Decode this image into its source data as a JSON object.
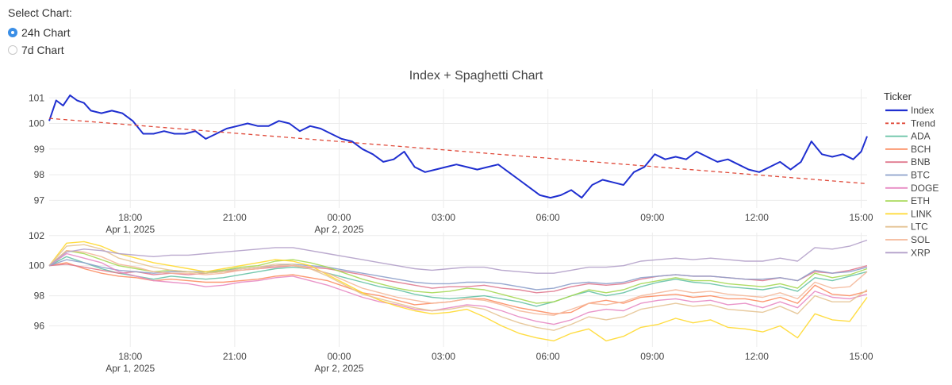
{
  "controls": {
    "label": "Select Chart:",
    "options": [
      "24h Chart",
      "7d Chart"
    ],
    "selected": "24h Chart"
  },
  "chart_data": {
    "type": "line",
    "title": "Index + Spaghetti Chart",
    "x_start": "2025-04-01 15:40",
    "x_end": "2025-04-02 15:10",
    "x_ticks": [
      {
        "hours": 2.33,
        "label": "18:00",
        "sublabel": "Apr 1, 2025"
      },
      {
        "hours": 5.33,
        "label": "21:00",
        "sublabel": ""
      },
      {
        "hours": 8.33,
        "label": "00:00",
        "sublabel": "Apr 2, 2025"
      },
      {
        "hours": 11.33,
        "label": "03:00",
        "sublabel": ""
      },
      {
        "hours": 14.33,
        "label": "06:00",
        "sublabel": ""
      },
      {
        "hours": 17.33,
        "label": "09:00",
        "sublabel": ""
      },
      {
        "hours": 20.33,
        "label": "12:00",
        "sublabel": ""
      },
      {
        "hours": 23.33,
        "label": "15:00",
        "sublabel": ""
      }
    ],
    "legend_title": "Ticker",
    "colors": {
      "Index": "#1f2fd0",
      "Trend": "#e04a3a",
      "ADA": "#66c2a5",
      "BCH": "#fc8d62",
      "BNB": "#e07a8f",
      "BTC": "#8da0cb",
      "DOGE": "#e78ac3",
      "ETH": "#a6d854",
      "LINK": "#ffd92f",
      "LTC": "#e5c494",
      "SOL": "#f4b89a",
      "XRP": "#b3a0c9"
    },
    "top_panel": {
      "ylim": [
        96.7,
        101.35
      ],
      "yticks": [
        97,
        98,
        99,
        100,
        101
      ],
      "series": [
        {
          "name": "Index",
          "style": "solid",
          "x_hours": [
            0,
            0.2,
            0.4,
            0.6,
            0.8,
            1.0,
            1.2,
            1.5,
            1.8,
            2.1,
            2.4,
            2.7,
            3.0,
            3.3,
            3.6,
            3.9,
            4.2,
            4.5,
            4.8,
            5.1,
            5.4,
            5.7,
            6.0,
            6.3,
            6.6,
            6.9,
            7.2,
            7.5,
            7.8,
            8.1,
            8.4,
            8.7,
            9.0,
            9.3,
            9.6,
            9.9,
            10.2,
            10.5,
            10.8,
            11.1,
            11.4,
            11.7,
            12.0,
            12.3,
            12.6,
            12.9,
            13.2,
            13.5,
            13.8,
            14.1,
            14.4,
            14.7,
            15.0,
            15.3,
            15.6,
            15.9,
            16.2,
            16.5,
            16.8,
            17.1,
            17.4,
            17.7,
            18.0,
            18.3,
            18.6,
            18.9,
            19.2,
            19.5,
            19.8,
            20.1,
            20.4,
            20.7,
            21.0,
            21.3,
            21.6,
            21.9,
            22.2,
            22.5,
            22.8,
            23.1,
            23.33,
            23.5
          ],
          "values": [
            100.1,
            100.9,
            100.7,
            101.1,
            100.9,
            100.8,
            100.5,
            100.4,
            100.5,
            100.4,
            100.1,
            99.6,
            99.6,
            99.7,
            99.6,
            99.6,
            99.7,
            99.4,
            99.6,
            99.8,
            99.9,
            100.0,
            99.9,
            99.9,
            100.1,
            100.0,
            99.7,
            99.9,
            99.8,
            99.6,
            99.4,
            99.3,
            99.0,
            98.8,
            98.5,
            98.6,
            98.9,
            98.3,
            98.1,
            98.2,
            98.3,
            98.4,
            98.3,
            98.2,
            98.3,
            98.4,
            98.1,
            97.8,
            97.5,
            97.2,
            97.1,
            97.2,
            97.4,
            97.1,
            97.6,
            97.8,
            97.7,
            97.6,
            98.1,
            98.3,
            98.8,
            98.6,
            98.7,
            98.6,
            98.9,
            98.7,
            98.5,
            98.6,
            98.4,
            98.2,
            98.1,
            98.3,
            98.5,
            98.2,
            98.5,
            99.3,
            98.8,
            98.7,
            98.8,
            98.6,
            98.9,
            99.5
          ]
        },
        {
          "name": "Trend",
          "style": "dash",
          "x_hours": [
            0,
            23.5
          ],
          "values": [
            100.2,
            97.65
          ]
        }
      ]
    },
    "bottom_panel": {
      "ylim": [
        94.6,
        102.2
      ],
      "yticks": [
        96,
        98,
        100,
        102
      ],
      "x_hours": [
        0,
        0.5,
        1,
        1.5,
        2,
        2.5,
        3,
        3.5,
        4,
        4.5,
        5,
        5.5,
        6,
        6.5,
        7,
        7.5,
        8,
        8.5,
        9,
        9.5,
        10,
        10.5,
        11,
        11.5,
        12,
        12.5,
        13,
        13.5,
        14,
        14.5,
        15,
        15.5,
        16,
        16.5,
        17,
        17.5,
        18,
        18.5,
        19,
        19.5,
        20,
        20.5,
        21,
        21.5,
        22,
        22.5,
        23,
        23.5
      ],
      "series": [
        {
          "name": "ADA",
          "values": [
            100.0,
            100.6,
            100.2,
            99.8,
            99.5,
            99.3,
            99.1,
            99.3,
            99.2,
            99.1,
            99.2,
            99.4,
            99.6,
            99.8,
            99.9,
            99.8,
            99.5,
            99.2,
            98.9,
            98.6,
            98.4,
            98.1,
            97.9,
            97.8,
            97.9,
            98.0,
            97.8,
            97.6,
            97.3,
            97.6,
            98.0,
            98.3,
            98.0,
            98.2,
            98.6,
            98.9,
            99.1,
            98.9,
            98.8,
            98.6,
            98.5,
            98.4,
            98.6,
            98.3,
            99.2,
            99.0,
            99.3,
            99.6
          ]
        },
        {
          "name": "BCH",
          "values": [
            100.0,
            100.2,
            99.8,
            99.5,
            99.3,
            99.2,
            99.0,
            99.1,
            99.0,
            98.9,
            98.9,
            99.0,
            99.1,
            99.3,
            99.4,
            99.2,
            99.0,
            98.6,
            98.2,
            98.0,
            97.7,
            97.4,
            97.5,
            97.6,
            97.8,
            97.8,
            97.5,
            97.2,
            97.0,
            96.8,
            96.9,
            97.5,
            97.7,
            97.5,
            97.9,
            98.0,
            98.1,
            97.9,
            98.0,
            97.8,
            97.8,
            97.6,
            97.9,
            97.5,
            98.7,
            98.1,
            98.0,
            98.3
          ]
        },
        {
          "name": "BNB",
          "values": [
            100.0,
            100.1,
            99.9,
            99.7,
            99.5,
            99.6,
            99.4,
            99.5,
            99.4,
            99.5,
            99.6,
            99.7,
            99.8,
            99.9,
            100.0,
            99.9,
            99.8,
            99.6,
            99.4,
            99.1,
            98.9,
            98.7,
            98.5,
            98.6,
            98.6,
            98.7,
            98.5,
            98.4,
            98.2,
            98.3,
            98.6,
            98.8,
            98.7,
            98.8,
            99.1,
            99.3,
            99.4,
            99.3,
            99.3,
            99.2,
            99.1,
            99.0,
            99.2,
            99.0,
            99.6,
            99.5,
            99.7,
            100.0
          ]
        },
        {
          "name": "BTC",
          "values": [
            100.0,
            100.4,
            100.2,
            99.9,
            99.7,
            99.6,
            99.5,
            99.6,
            99.6,
            99.6,
            99.7,
            99.8,
            99.9,
            100.0,
            100.1,
            100.0,
            99.9,
            99.7,
            99.5,
            99.3,
            99.1,
            98.9,
            98.8,
            98.8,
            98.9,
            98.9,
            98.8,
            98.6,
            98.4,
            98.5,
            98.8,
            98.9,
            98.8,
            98.9,
            99.2,
            99.3,
            99.4,
            99.3,
            99.3,
            99.2,
            99.1,
            99.1,
            99.2,
            99.0,
            99.7,
            99.5,
            99.6,
            99.9
          ]
        },
        {
          "name": "DOGE",
          "values": [
            100.0,
            100.8,
            100.5,
            100.2,
            99.6,
            99.3,
            99.0,
            98.9,
            98.8,
            98.6,
            98.7,
            98.9,
            99.0,
            99.2,
            99.3,
            99.0,
            98.7,
            98.3,
            97.9,
            97.6,
            97.4,
            97.1,
            97.0,
            97.2,
            97.4,
            97.3,
            97.0,
            96.6,
            96.3,
            96.1,
            96.4,
            96.9,
            97.1,
            97.0,
            97.5,
            97.7,
            97.8,
            97.6,
            97.7,
            97.4,
            97.5,
            97.2,
            97.6,
            97.2,
            98.3,
            97.9,
            97.8,
            98.1
          ]
        },
        {
          "name": "ETH",
          "values": [
            100.0,
            101.0,
            100.8,
            100.4,
            100.0,
            99.8,
            99.6,
            99.7,
            99.6,
            99.5,
            99.7,
            99.9,
            100.0,
            100.3,
            100.4,
            100.2,
            99.9,
            99.5,
            99.1,
            98.8,
            98.5,
            98.3,
            98.2,
            98.3,
            98.5,
            98.4,
            98.1,
            97.8,
            97.5,
            97.6,
            98.0,
            98.4,
            98.2,
            98.4,
            98.8,
            99.0,
            99.2,
            99.0,
            99.0,
            98.8,
            98.7,
            98.6,
            98.8,
            98.5,
            99.5,
            99.2,
            99.4,
            99.8
          ]
        },
        {
          "name": "LINK",
          "values": [
            100.0,
            101.5,
            101.6,
            101.3,
            100.8,
            100.5,
            100.2,
            100.0,
            99.8,
            99.6,
            99.8,
            100.0,
            100.2,
            100.4,
            100.3,
            100.0,
            99.4,
            98.8,
            98.2,
            97.7,
            97.3,
            97.0,
            96.8,
            96.9,
            97.1,
            96.6,
            96.0,
            95.5,
            95.2,
            95.0,
            95.5,
            95.8,
            95.0,
            95.3,
            95.9,
            96.1,
            96.5,
            96.2,
            96.4,
            95.9,
            95.8,
            95.6,
            96.0,
            95.2,
            96.8,
            96.4,
            96.3,
            97.9
          ]
        },
        {
          "name": "LTC",
          "values": [
            100.0,
            101.3,
            101.4,
            101.1,
            100.5,
            100.2,
            99.9,
            99.7,
            99.6,
            99.5,
            99.6,
            99.8,
            99.9,
            100.1,
            100.1,
            99.8,
            99.3,
            98.7,
            98.1,
            97.8,
            97.5,
            97.2,
            97.0,
            97.1,
            97.3,
            97.1,
            96.6,
            96.2,
            95.9,
            95.7,
            96.1,
            96.6,
            96.4,
            96.6,
            97.1,
            97.3,
            97.5,
            97.3,
            97.4,
            97.1,
            97.0,
            96.9,
            97.3,
            96.8,
            98.0,
            97.6,
            97.6,
            98.4
          ]
        },
        {
          "name": "SOL",
          "values": [
            100.0,
            101.0,
            100.9,
            100.6,
            100.1,
            99.9,
            99.6,
            99.5,
            99.5,
            99.4,
            99.5,
            99.7,
            99.8,
            100.0,
            100.0,
            99.8,
            99.5,
            99.0,
            98.5,
            98.2,
            97.9,
            97.7,
            97.5,
            97.6,
            97.8,
            97.7,
            97.4,
            97.0,
            96.8,
            96.7,
            97.1,
            97.5,
            97.4,
            97.6,
            98.0,
            98.2,
            98.4,
            98.2,
            98.3,
            98.1,
            98.0,
            97.9,
            98.2,
            97.8,
            98.9,
            98.5,
            98.6,
            99.6
          ]
        },
        {
          "name": "XRP",
          "values": [
            100.0,
            100.9,
            101.1,
            101.0,
            100.8,
            100.7,
            100.6,
            100.7,
            100.7,
            100.8,
            100.9,
            101.0,
            101.1,
            101.2,
            101.2,
            101.0,
            100.8,
            100.6,
            100.4,
            100.2,
            100.0,
            99.8,
            99.7,
            99.8,
            99.9,
            99.9,
            99.7,
            99.6,
            99.5,
            99.5,
            99.7,
            99.9,
            99.9,
            100.0,
            100.3,
            100.4,
            100.5,
            100.4,
            100.5,
            100.4,
            100.3,
            100.3,
            100.5,
            100.3,
            101.2,
            101.1,
            101.3,
            101.7
          ]
        }
      ]
    }
  }
}
